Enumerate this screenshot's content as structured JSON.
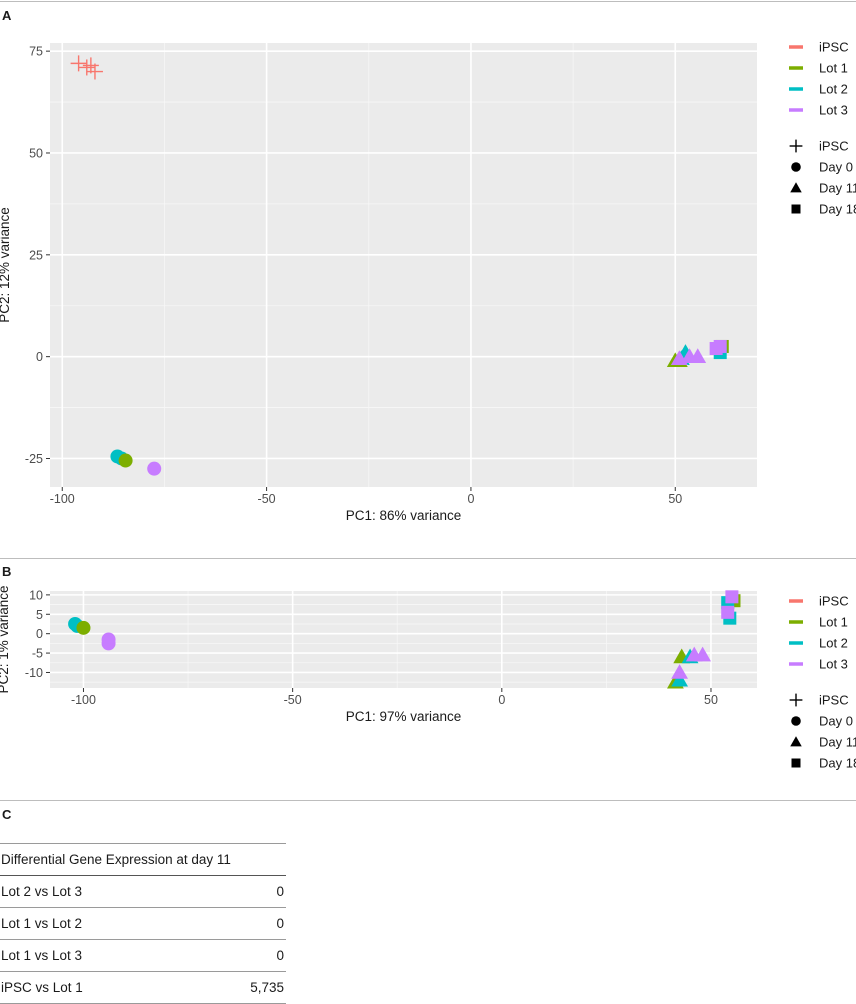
{
  "panels": {
    "a": "A",
    "b": "B",
    "c": "C"
  },
  "chart_data": [
    {
      "type": "scatter",
      "xlabel": "PC1: 86% variance",
      "ylabel": "PC2: 12% variance",
      "xlim": [
        -103,
        70
      ],
      "ylim": [
        -32,
        77
      ],
      "xticks": [
        -100,
        -50,
        0,
        50
      ],
      "xtick_labels": [
        "-100",
        "-50",
        "0",
        "50"
      ],
      "yticks": [
        -25,
        0,
        25,
        50,
        75
      ],
      "ytick_labels": [
        "-25",
        "0",
        "25",
        "50",
        "75"
      ],
      "grid": true,
      "legend_position": "right",
      "color_legend": [
        {
          "label": "iPSC",
          "color": "#F8766D"
        },
        {
          "label": "Lot 1",
          "color": "#7CAE00"
        },
        {
          "label": "Lot 2",
          "color": "#00BFC4"
        },
        {
          "label": "Lot 3",
          "color": "#C77CFF"
        }
      ],
      "shape_legend": [
        {
          "label": "iPSC",
          "shape": "plus"
        },
        {
          "label": "Day 0",
          "shape": "circle"
        },
        {
          "label": "Day 11",
          "shape": "triangle"
        },
        {
          "label": "Day 18",
          "shape": "square"
        }
      ],
      "points": [
        {
          "group": "iPSC",
          "stage": "iPSC",
          "x": -96,
          "y": 72
        },
        {
          "group": "iPSC",
          "stage": "iPSC",
          "x": -94,
          "y": 71
        },
        {
          "group": "iPSC",
          "stage": "iPSC",
          "x": -93,
          "y": 71.5
        },
        {
          "group": "iPSC",
          "stage": "iPSC",
          "x": -92,
          "y": 70
        },
        {
          "group": "Lot 2",
          "stage": "Day 0",
          "x": -86.5,
          "y": -24.5
        },
        {
          "group": "Lot 2",
          "stage": "Day 0",
          "x": -85.5,
          "y": -25
        },
        {
          "group": "Lot 1",
          "stage": "Day 0",
          "x": -84.5,
          "y": -25.5
        },
        {
          "group": "Lot 3",
          "stage": "Day 0",
          "x": -77.5,
          "y": -27.5
        },
        {
          "group": "Lot 1",
          "stage": "Day 11",
          "x": 50,
          "y": -1
        },
        {
          "group": "Lot 1",
          "stage": "Day 11",
          "x": 51,
          "y": -1
        },
        {
          "group": "Lot 2",
          "stage": "Day 11",
          "x": 51.5,
          "y": -0.5
        },
        {
          "group": "Lot 2",
          "stage": "Day 11",
          "x": 52.5,
          "y": 1
        },
        {
          "group": "Lot 3",
          "stage": "Day 11",
          "x": 51,
          "y": -0.5
        },
        {
          "group": "Lot 3",
          "stage": "Day 11",
          "x": 53.5,
          "y": 0
        },
        {
          "group": "Lot 3",
          "stage": "Day 11",
          "x": 55.5,
          "y": 0
        },
        {
          "group": "Lot 1",
          "stage": "Day 18",
          "x": 61.5,
          "y": 2.5
        },
        {
          "group": "Lot 2",
          "stage": "Day 18",
          "x": 61,
          "y": 1
        },
        {
          "group": "Lot 3",
          "stage": "Day 18",
          "x": 60,
          "y": 2
        },
        {
          "group": "Lot 3",
          "stage": "Day 18",
          "x": 61,
          "y": 2.5
        }
      ]
    },
    {
      "type": "scatter",
      "xlabel": "PC1: 97% variance",
      "ylabel": "PC2: 1% variance",
      "xlim": [
        -108,
        61
      ],
      "ylim": [
        -14,
        11
      ],
      "xticks": [
        -100,
        -50,
        0,
        50
      ],
      "xtick_labels": [
        "-100",
        "-50",
        "0",
        "50"
      ],
      "yticks": [
        -10,
        -5,
        0,
        5,
        10
      ],
      "ytick_labels": [
        "-10",
        "-5",
        "0",
        "5",
        "10"
      ],
      "grid": true,
      "legend_position": "right",
      "color_legend": [
        {
          "label": "iPSC",
          "color": "#F8766D"
        },
        {
          "label": "Lot 1",
          "color": "#7CAE00"
        },
        {
          "label": "Lot 2",
          "color": "#00BFC4"
        },
        {
          "label": "Lot 3",
          "color": "#C77CFF"
        }
      ],
      "shape_legend": [
        {
          "label": "iPSC",
          "shape": "plus"
        },
        {
          "label": "Day 0",
          "shape": "circle"
        },
        {
          "label": "Day 11",
          "shape": "triangle"
        },
        {
          "label": "Day 18",
          "shape": "square"
        }
      ],
      "points": [
        {
          "group": "Lot 2",
          "stage": "Day 0",
          "x": -102,
          "y": 2.5
        },
        {
          "group": "Lot 2",
          "stage": "Day 0",
          "x": -101.5,
          "y": 2
        },
        {
          "group": "Lot 1",
          "stage": "Day 0",
          "x": -100,
          "y": 1.5
        },
        {
          "group": "Lot 3",
          "stage": "Day 0",
          "x": -94,
          "y": -1.5
        },
        {
          "group": "Lot 3",
          "stage": "Day 0",
          "x": -94,
          "y": -2.5
        },
        {
          "group": "Lot 1",
          "stage": "Day 11",
          "x": 41.5,
          "y": -12.5
        },
        {
          "group": "Lot 1",
          "stage": "Day 11",
          "x": 43,
          "y": -6
        },
        {
          "group": "Lot 2",
          "stage": "Day 11",
          "x": 42.5,
          "y": -12
        },
        {
          "group": "Lot 2",
          "stage": "Day 11",
          "x": 45,
          "y": -6
        },
        {
          "group": "Lot 3",
          "stage": "Day 11",
          "x": 42.5,
          "y": -10
        },
        {
          "group": "Lot 3",
          "stage": "Day 11",
          "x": 46,
          "y": -5.5
        },
        {
          "group": "Lot 3",
          "stage": "Day 11",
          "x": 48,
          "y": -5.5
        },
        {
          "group": "Lot 1",
          "stage": "Day 18",
          "x": 55.5,
          "y": 8.5
        },
        {
          "group": "Lot 2",
          "stage": "Day 18",
          "x": 54,
          "y": 8
        },
        {
          "group": "Lot 2",
          "stage": "Day 18",
          "x": 54.5,
          "y": 4
        },
        {
          "group": "Lot 3",
          "stage": "Day 18",
          "x": 54,
          "y": 5.5
        },
        {
          "group": "Lot 3",
          "stage": "Day 18",
          "x": 55,
          "y": 9.5
        }
      ]
    },
    {
      "type": "table",
      "title": "Differential Gene Expression at day 11",
      "rows": [
        {
          "comparison": "Lot 2 vs Lot 3",
          "value": "0"
        },
        {
          "comparison": "Lot 1 vs Lot 2",
          "value": "0"
        },
        {
          "comparison": "Lot 1 vs Lot 3",
          "value": "0"
        },
        {
          "comparison": "iPSC vs Lot 1",
          "value": "5,735"
        }
      ]
    }
  ]
}
